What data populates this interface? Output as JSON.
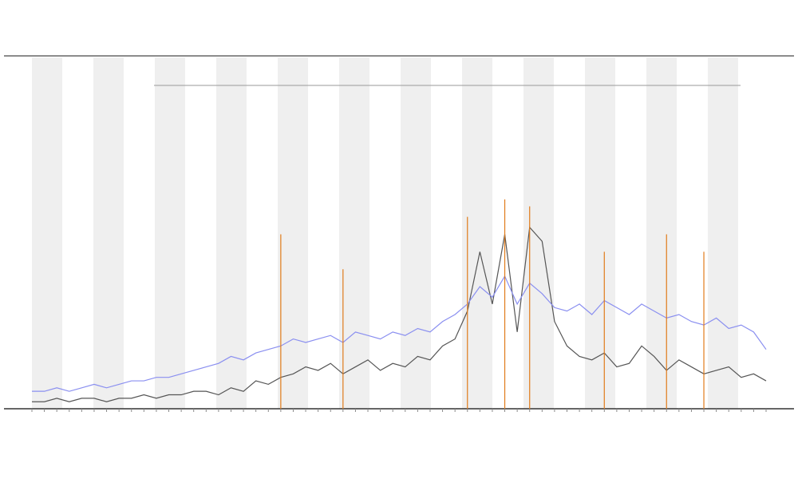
{
  "chart_data": {
    "type": "line",
    "categories": [
      null,
      null,
      null,
      null,
      null,
      null,
      null,
      null,
      null,
      null,
      null,
      null,
      null,
      null,
      null,
      null,
      null,
      null,
      null,
      null,
      null,
      null,
      null,
      null,
      null,
      null,
      null,
      null,
      null,
      null,
      null,
      null,
      null,
      null,
      null,
      null,
      null,
      null,
      null,
      null,
      null,
      null,
      null,
      null,
      null,
      null,
      null,
      null,
      null,
      null,
      null,
      null,
      null,
      null,
      null,
      null,
      null,
      null,
      null,
      null
    ],
    "series": [
      {
        "color": "#555555",
        "style": "line",
        "values": [
          2,
          2,
          3,
          2,
          3,
          3,
          2,
          3,
          3,
          4,
          3,
          4,
          4,
          5,
          5,
          4,
          6,
          5,
          8,
          7,
          9,
          10,
          12,
          11,
          13,
          10,
          12,
          14,
          11,
          13,
          12,
          15,
          14,
          18,
          20,
          28,
          45,
          30,
          50,
          22,
          52,
          48,
          25,
          18,
          15,
          14,
          16,
          12,
          13,
          18,
          15,
          11,
          14,
          12,
          10,
          11,
          12,
          9,
          10,
          8
        ]
      },
      {
        "color": "#8a8ff0",
        "style": "line",
        "values": [
          5,
          5,
          6,
          5,
          6,
          7,
          6,
          7,
          8,
          8,
          9,
          9,
          10,
          11,
          12,
          13,
          15,
          14,
          16,
          17,
          18,
          20,
          19,
          20,
          21,
          19,
          22,
          21,
          20,
          22,
          21,
          23,
          22,
          25,
          27,
          30,
          35,
          32,
          38,
          30,
          36,
          33,
          29,
          28,
          30,
          27,
          31,
          29,
          27,
          30,
          28,
          26,
          27,
          25,
          24,
          26,
          23,
          24,
          22,
          17
        ]
      },
      {
        "color": "#e07b1a",
        "style": "spike",
        "values": [
          null,
          null,
          null,
          null,
          null,
          null,
          null,
          null,
          null,
          null,
          null,
          null,
          null,
          null,
          null,
          null,
          null,
          null,
          null,
          null,
          50,
          null,
          null,
          null,
          null,
          40,
          null,
          null,
          null,
          null,
          null,
          null,
          null,
          null,
          null,
          55,
          null,
          null,
          60,
          null,
          58,
          null,
          null,
          null,
          null,
          null,
          45,
          null,
          null,
          null,
          null,
          50,
          null,
          null,
          45,
          null,
          null,
          null,
          null,
          null
        ]
      }
    ],
    "ylim": [
      0,
      100
    ]
  }
}
